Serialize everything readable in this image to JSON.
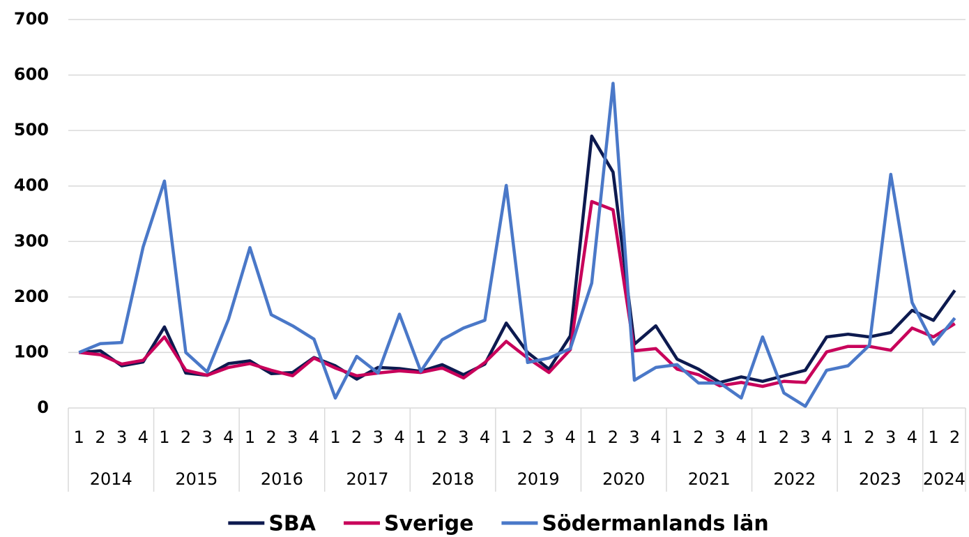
{
  "chart_data": {
    "type": "line",
    "categories": [
      "1",
      "2",
      "3",
      "4",
      "1",
      "2",
      "3",
      "4",
      "1",
      "2",
      "3",
      "4",
      "1",
      "2",
      "3",
      "4",
      "1",
      "2",
      "3",
      "4",
      "1",
      "2",
      "3",
      "4",
      "1",
      "2",
      "3",
      "4",
      "1",
      "2",
      "3",
      "4",
      "1",
      "2",
      "3",
      "4",
      "1",
      "2",
      "3",
      "4",
      "1",
      "2"
    ],
    "groups": [
      "2014",
      "2015",
      "2016",
      "2017",
      "2018",
      "2019",
      "2020",
      "2021",
      "2022",
      "2023",
      "2024"
    ],
    "series": [
      {
        "name": "SBA",
        "color": "#0d1a4f",
        "values": [
          100,
          103,
          76,
          83,
          146,
          63,
          59,
          80,
          85,
          62,
          64,
          91,
          76,
          52,
          73,
          71,
          66,
          78,
          60,
          79,
          153,
          100,
          70,
          130,
          490,
          425,
          115,
          148,
          88,
          70,
          46,
          56,
          48,
          58,
          68,
          128,
          133,
          128,
          136,
          176,
          158,
          212
        ]
      },
      {
        "name": "Sverige",
        "color": "#c8005a",
        "values": [
          100,
          96,
          79,
          86,
          128,
          68,
          59,
          73,
          80,
          68,
          58,
          90,
          72,
          58,
          63,
          67,
          64,
          72,
          54,
          82,
          120,
          90,
          64,
          105,
          372,
          357,
          103,
          107,
          70,
          60,
          40,
          46,
          39,
          48,
          46,
          101,
          111,
          111,
          104,
          144,
          128,
          152
        ]
      },
      {
        "name": "Södermanlands län",
        "color": "#4a78c8",
        "values": [
          100,
          116,
          118,
          290,
          409,
          100,
          65,
          160,
          289,
          168,
          148,
          124,
          18,
          93,
          63,
          169,
          66,
          123,
          144,
          158,
          401,
          82,
          90,
          107,
          225,
          585,
          50,
          73,
          78,
          45,
          45,
          18,
          128,
          27,
          3,
          68,
          76,
          113,
          421,
          190,
          115,
          162
        ]
      }
    ],
    "ylim": [
      0,
      700
    ],
    "yticks": [
      0,
      100,
      200,
      300,
      400,
      500,
      600,
      700
    ],
    "grid": true,
    "legend": "bottom"
  }
}
